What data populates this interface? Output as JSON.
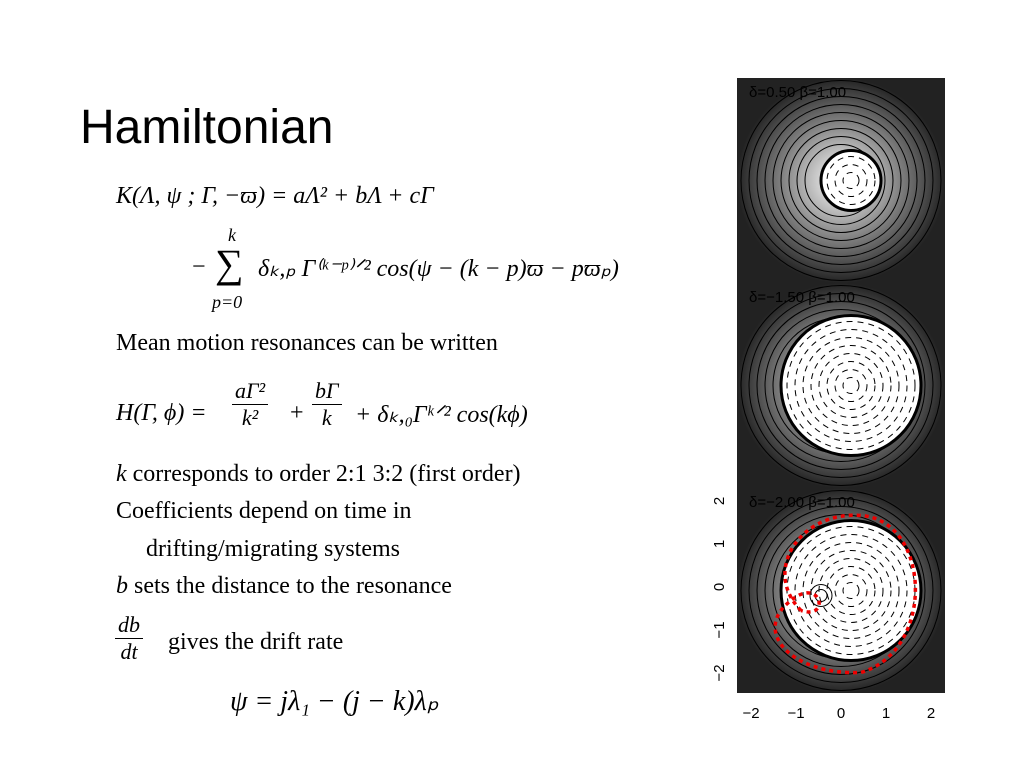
{
  "title": "Hamiltonian",
  "eq1": "K(Λ, ψ ; Γ, −ϖ) = aΛ² + bΛ + cΓ",
  "eq2": {
    "minus": "−",
    "upper": "k",
    "sigma": "∑",
    "lower": "p=0",
    "body": "δₖ,ₚ Γ⁽ᵏ⁻ᵖ⁾ᐟ² cos(ψ − (k − p)ϖ − pϖₚ)"
  },
  "text1": "Mean motion resonances can be written",
  "eq3": {
    "lhs": "H(Γ, ϕ) =",
    "num1": "aΓ²",
    "den1": "k²",
    "plus": "+",
    "num2": "bΓ",
    "den2": "k",
    "rest": "+ δₖ,₀Γᵏᐟ² cos(kϕ)"
  },
  "bullet1": {
    "var": "k",
    "text": "corresponds to order  2:1 3:2 (first order)"
  },
  "bullet2": [
    "Coefficients depend on time in",
    "drifting/migrating systems"
  ],
  "bullet3": {
    "var": "b",
    "text": "sets the distance to the resonance"
  },
  "bullet4": {
    "num": "db",
    "den": "dt",
    "text": "gives the drift rate"
  },
  "eq4": "ψ = jλ₁ − (j − k)λₚ",
  "figure": {
    "panels": [
      "δ=0.50  β=1.00",
      "δ=−1.50  β=1.00",
      "δ=−2.00  β=1.00"
    ],
    "xticks": [
      "−2",
      "−1",
      "0",
      "1",
      "2"
    ],
    "yticks": [
      "−2",
      "−1",
      "0",
      "1",
      "2"
    ]
  }
}
